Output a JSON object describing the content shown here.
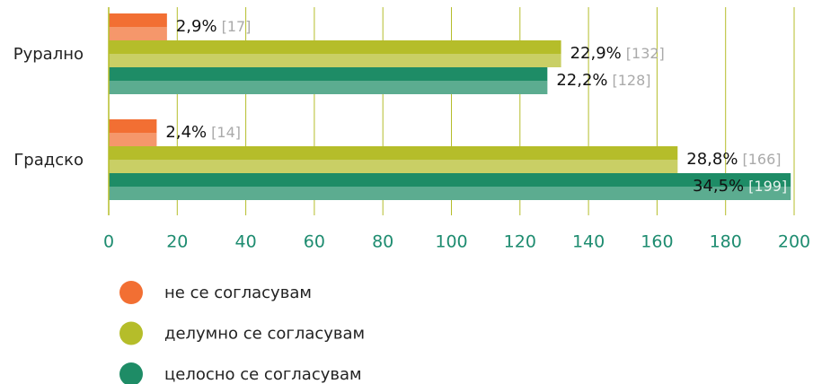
{
  "chart_data": {
    "type": "barh",
    "categories": [
      "Рурално",
      "Градско"
    ],
    "series": [
      {
        "name": "не се согласувам",
        "color": "#f26f33",
        "values": [
          17,
          14
        ],
        "percent_labels": [
          "2,9%",
          "2,4%"
        ],
        "value_labels": [
          "[17]",
          "[14]"
        ]
      },
      {
        "name": "делумно се согласувам",
        "color": "#b5bd2a",
        "values": [
          132,
          166
        ],
        "percent_labels": [
          "22,9%",
          "28,8%"
        ],
        "value_labels": [
          "[132]",
          "[166]"
        ]
      },
      {
        "name": "целосно се согласувам",
        "color": "#1e8c66",
        "values": [
          128,
          199
        ],
        "percent_labels": [
          "22,2%",
          "34,5%"
        ],
        "value_labels": [
          "[128]",
          "[199]"
        ]
      }
    ],
    "xlim": [
      0,
      200
    ],
    "xticks": [
      0,
      20,
      40,
      60,
      80,
      100,
      120,
      140,
      160,
      180,
      200
    ],
    "grid": true
  }
}
